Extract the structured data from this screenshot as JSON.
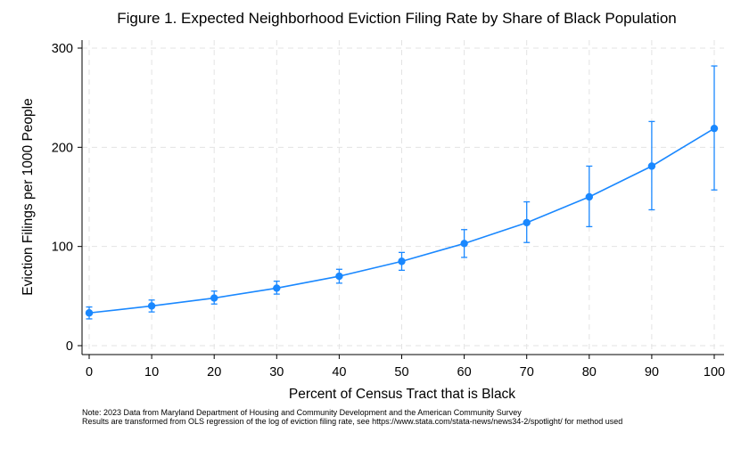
{
  "chart_data": {
    "type": "line",
    "title": "Figure 1. Expected Neighborhood Eviction Filing Rate by Share of Black Population",
    "xlabel": "Percent of Census Tract that is Black",
    "ylabel": "Eviction Filings per 1000 People",
    "xlim": [
      0,
      100
    ],
    "ylim": [
      0,
      300
    ],
    "x_ticks": [
      0,
      10,
      20,
      30,
      40,
      50,
      60,
      70,
      80,
      90,
      100
    ],
    "y_ticks": [
      0,
      100,
      200,
      300
    ],
    "grid": true,
    "color": "#1a88ff",
    "series": [
      {
        "x": [
          0,
          10,
          20,
          30,
          40,
          50,
          60,
          70,
          80,
          90,
          100
        ],
        "values": [
          33,
          40,
          48,
          58,
          70,
          85,
          103,
          124,
          150,
          181,
          219
        ],
        "ci_low": [
          27,
          34,
          42,
          52,
          63,
          76,
          89,
          104,
          120,
          137,
          157
        ],
        "ci_high": [
          39,
          46,
          55,
          65,
          77,
          94,
          117,
          145,
          181,
          226,
          282
        ]
      }
    ],
    "notes": [
      "Note: 2023 Data from Maryland Department of Housing and Community Development and the American Community Survey",
      "Results are transformed from OLS regression of the log of eviction filing rate, see https://www.stata.com/stata-news/news34-2/spotlight/ for method used"
    ]
  }
}
